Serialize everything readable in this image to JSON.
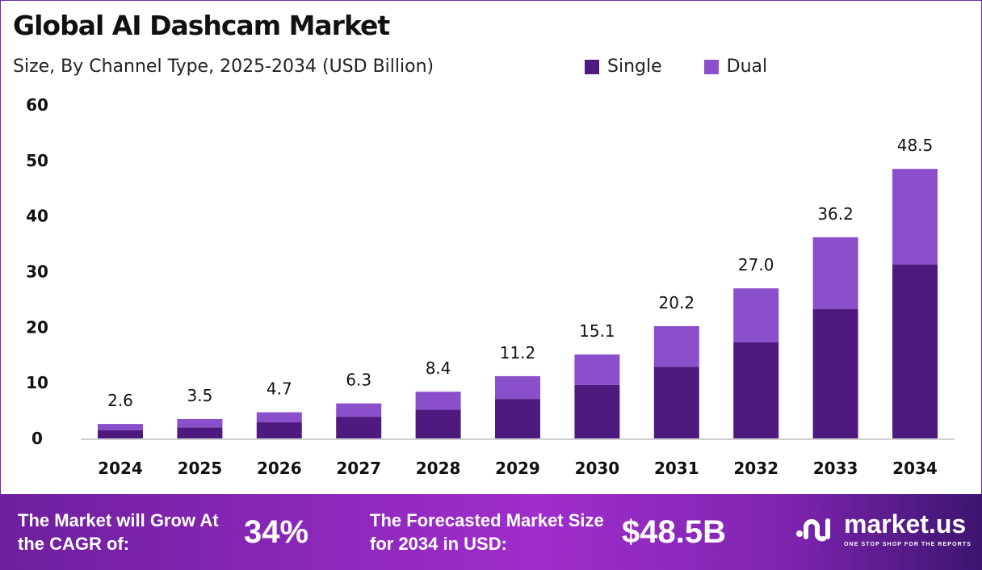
{
  "title": "Global AI Dashcam Market",
  "subtitle": "Size, By Channel Type, 2025-2034 (USD Billion)",
  "colors": {
    "single": "#4f1a80",
    "dual": "#8c4fcc"
  },
  "chart_data": {
    "type": "bar",
    "stacked": true,
    "categories": [
      "2024",
      "2025",
      "2026",
      "2027",
      "2028",
      "2029",
      "2030",
      "2031",
      "2032",
      "2033",
      "2034"
    ],
    "series": [
      {
        "name": "Single",
        "values": [
          1.5,
          2.0,
          2.9,
          3.9,
          5.2,
          7.1,
          9.6,
          12.9,
          17.3,
          23.3,
          31.3
        ]
      },
      {
        "name": "Dual",
        "values": [
          1.1,
          1.5,
          1.8,
          2.4,
          3.2,
          4.1,
          5.5,
          7.3,
          9.7,
          12.9,
          17.2
        ]
      }
    ],
    "totals": [
      "2.6",
      "3.5",
      "4.7",
      "6.3",
      "8.4",
      "11.2",
      "15.1",
      "20.2",
      "27.0",
      "36.2",
      "48.5"
    ],
    "yticks": [
      "0",
      "10",
      "20",
      "30",
      "40",
      "50",
      "60"
    ],
    "ylim": [
      0,
      60
    ],
    "grid": false,
    "legend": "top-right"
  },
  "footer": {
    "cagr_label": "The Market will Grow At the CAGR of:",
    "cagr_value": "34%",
    "forecast_label": "The Forecasted Market Size for 2034 in USD:",
    "forecast_value": "$48.5B",
    "logo_name": "market.us",
    "logo_tagline": "ONE STOP SHOP FOR THE REPORTS"
  }
}
